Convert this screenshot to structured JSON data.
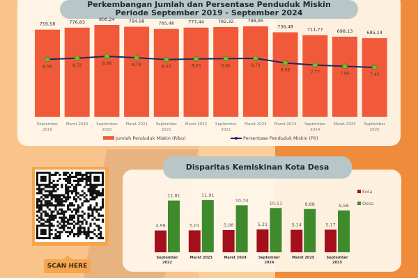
{
  "chart_data": [
    {
      "type": "bar+line",
      "title": "Perkembangan Jumlah dan Persentase Penduduk Miskin",
      "subtitle": "Periode September 2019 - September 2024",
      "categories": [
        [
          "September",
          "2019"
        ],
        [
          "Maret 2020"
        ],
        [
          "September",
          "2020"
        ],
        [
          "Maret 2021"
        ],
        [
          "September",
          "2021"
        ],
        [
          "Maret 2022"
        ],
        [
          "September",
          "2022"
        ],
        [
          "Maret 2023"
        ],
        [
          "Maret 2024"
        ],
        [
          "September",
          "2024"
        ],
        [
          "Maret 2025"
        ],
        [
          "September",
          "2025"
        ]
      ],
      "series": [
        {
          "name": "Jumlah Penduduk Miskin (Ribu)",
          "type": "bar",
          "color": "#f05a3a",
          "values": [
            759.58,
            776.83,
            800.24,
            784.98,
            765.46,
            777.44,
            782.32,
            788.85,
            736.48,
            711.77,
            698.13,
            685.14
          ],
          "labels": [
            "759,58",
            "776,83",
            "800,24",
            "784,98",
            "765,46",
            "777,44",
            "782,32",
            "788,85",
            "736,48",
            "711,77",
            "698,13",
            "685,14"
          ]
        },
        {
          "name": "Persentase Penduduk Miskin (P0)",
          "type": "line",
          "color": "#1e2a5a",
          "values": [
            8.56,
            8.72,
            8.99,
            8.78,
            8.53,
            8.63,
            8.66,
            8.7,
            8.06,
            7.77,
            7.6,
            7.43
          ],
          "labels": [
            "8,56",
            "8,72",
            "8,99",
            "8,78",
            "8,53",
            "8,63",
            "8,66",
            "8,70",
            "8,06",
            "7,77",
            "7,60",
            "7,43"
          ]
        }
      ],
      "legend": "bottom"
    },
    {
      "type": "bar",
      "title": "Disparitas Kemiskinan Kota Desa",
      "categories": [
        [
          "September",
          "2022"
        ],
        [
          "Maret 2023"
        ],
        [
          "Maret 2024"
        ],
        [
          "September",
          "2024"
        ],
        [
          "Maret 2025"
        ],
        [
          "September",
          "2025"
        ]
      ],
      "series": [
        {
          "name": "Kota",
          "color": "#a3101c",
          "values": [
            4.98,
            5.01,
            5.08,
            5.21,
            5.14,
            5.17
          ],
          "labels": [
            "4,98",
            "5,01",
            "5,08",
            "5,21",
            "5,14",
            "5,17"
          ]
        },
        {
          "name": "Desa",
          "color": "#3f8a2c",
          "values": [
            11.81,
            11.91,
            10.74,
            10.11,
            9.88,
            9.56
          ],
          "labels": [
            "11,81",
            "11,91",
            "10,74",
            "10,11",
            "9,88",
            "9,56"
          ]
        }
      ],
      "legend": "right"
    }
  ],
  "qr": {
    "button_label": "SCAN HERE"
  }
}
